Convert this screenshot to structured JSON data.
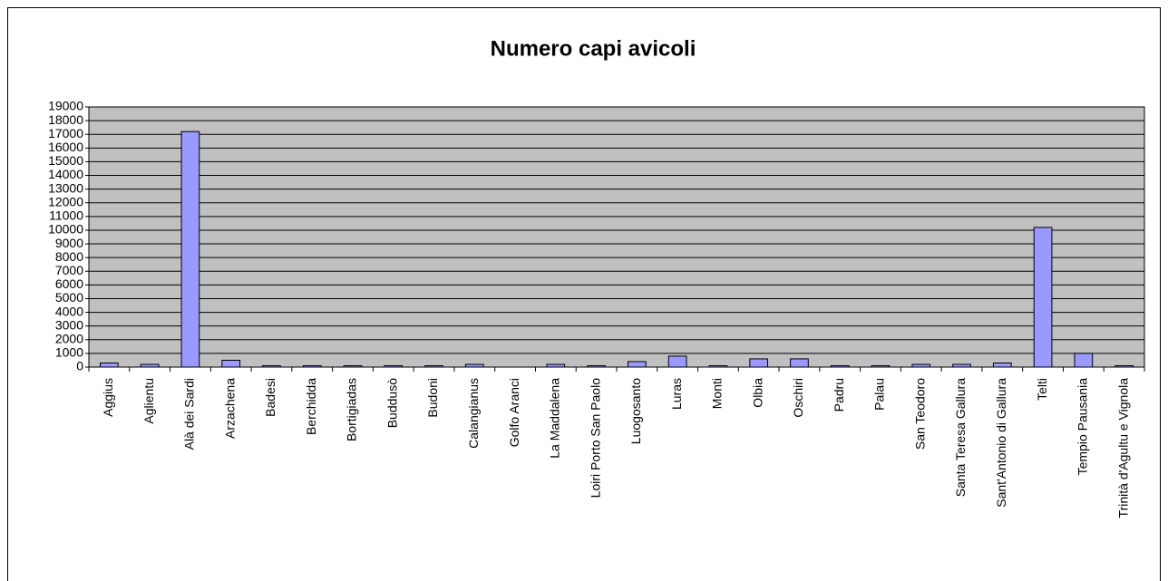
{
  "chart_data": {
    "type": "bar",
    "title": "Numero capi avicoli",
    "categories": [
      "Aggius",
      "Aglientu",
      "Alà dei Sardi",
      "Arzachena",
      "Badesi",
      "Berchidda",
      "Bortigiadas",
      "Buddusò",
      "Budoni",
      "Calangianus",
      "Golfo Aranci",
      "La Maddalena",
      "Loiri Porto San Paolo",
      "Luogosanto",
      "Luras",
      "Monti",
      "Olbia",
      "Oschiri",
      "Padru",
      "Palau",
      "San Teodoro",
      "Santa Teresa Gallura",
      "Sant'Antonio di Gallura",
      "Telti",
      "Tempio Pausania",
      "Trinità d'Agultu e Vignola"
    ],
    "values": [
      300,
      200,
      17200,
      500,
      100,
      100,
      100,
      100,
      100,
      200,
      0,
      200,
      100,
      400,
      800,
      100,
      600,
      600,
      100,
      100,
      200,
      200,
      300,
      10200,
      1000,
      100
    ],
    "color": "#9999ff",
    "ylim": [
      0,
      19000
    ],
    "yticks": [
      0,
      1000,
      2000,
      3000,
      4000,
      5000,
      6000,
      7000,
      8000,
      9000,
      10000,
      11000,
      12000,
      13000,
      14000,
      15000,
      16000,
      17000,
      18000,
      19000
    ],
    "grid": true
  }
}
